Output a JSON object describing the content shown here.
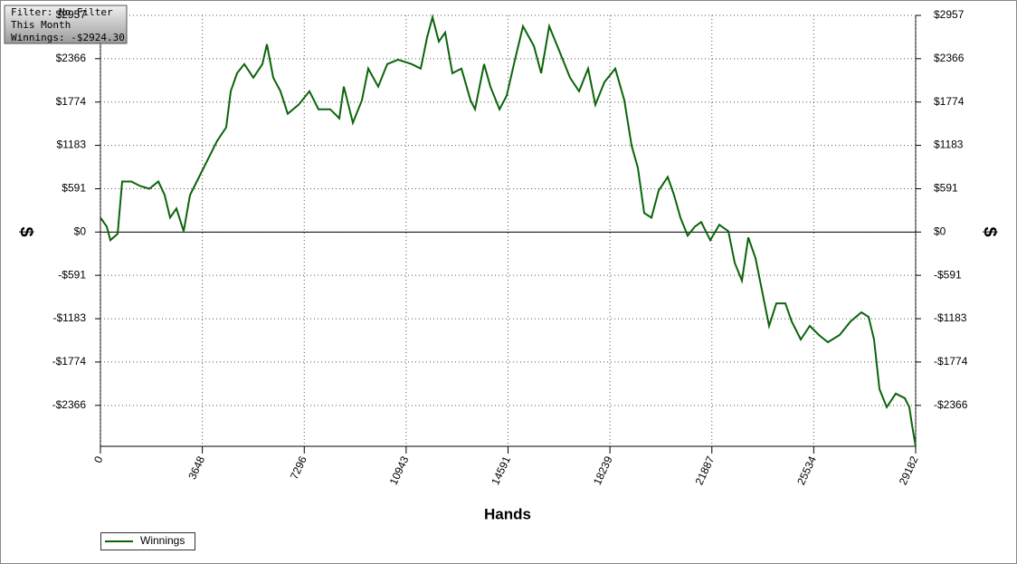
{
  "chart_data": {
    "type": "line",
    "annotations": [
      "Filter: No Filter",
      "This Month",
      "Winnings: -$2924.30"
    ],
    "x_label": "Hands",
    "y_label": "$",
    "x": [
      0,
      227,
      356,
      615,
      777,
      1101,
      1425,
      1749,
      2073,
      2300,
      2494,
      2721,
      2980,
      3207,
      3531,
      3855,
      4178,
      4502,
      4664,
      4891,
      5150,
      5474,
      5798,
      5960,
      6187,
      6446,
      6705,
      7094,
      7482,
      7806,
      8227,
      8551,
      8713,
      9037,
      9361,
      9588,
      9944,
      10268,
      10657,
      11143,
      11467,
      11694,
      11888,
      12114,
      12341,
      12600,
      12924,
      13248,
      13410,
      13734,
      13961,
      14285,
      14544,
      14803,
      15127,
      15516,
      15775,
      16065,
      16422,
      16811,
      17134,
      17458,
      17717,
      18041,
      18430,
      18754,
      19013,
      19240,
      19466,
      19725,
      19985,
      20309,
      20535,
      20762,
      21021,
      21280,
      21506,
      21830,
      22154,
      22478,
      22705,
      22964,
      23191,
      23450,
      23676,
      23935,
      24194,
      24518,
      24745,
      25069,
      25393,
      25717,
      26041,
      26462,
      26851,
      27240,
      27499,
      27693,
      27887,
      28146,
      28470,
      28794,
      28956,
      29053,
      29182
    ],
    "series": [
      {
        "name": "Winnings",
        "color": "#0a640a",
        "values": [
          197,
          74,
          -111,
          -25,
          690,
          690,
          628,
          591,
          690,
          505,
          197,
          320,
          12,
          505,
          752,
          998,
          1244,
          1429,
          1922,
          2168,
          2292,
          2107,
          2292,
          2563,
          2107,
          1922,
          1614,
          1737,
          1922,
          1676,
          1676,
          1552,
          1984,
          1491,
          1799,
          2230,
          1984,
          2292,
          2353,
          2292,
          2230,
          2661,
          2932,
          2600,
          2723,
          2168,
          2230,
          1799,
          1676,
          2292,
          1984,
          1676,
          1861,
          2292,
          2809,
          2538,
          2168,
          2809,
          2476,
          2107,
          1922,
          2230,
          1737,
          2045,
          2230,
          1799,
          1183,
          875,
          259,
          197,
          567,
          752,
          505,
          197,
          -49,
          74,
          136,
          -111,
          99,
          12,
          -419,
          -665,
          -74,
          -357,
          -788,
          -1281,
          -973,
          -973,
          -1220,
          -1466,
          -1281,
          -1404,
          -1503,
          -1404,
          -1220,
          -1096,
          -1158,
          -1466,
          -2144,
          -2390,
          -2205,
          -2267,
          -2390,
          -2637,
          -2924.3
        ]
      }
    ],
    "xlim": [
      0,
      29182
    ],
    "xticks": [
      0,
      3648,
      7296,
      10943,
      14591,
      18239,
      21887,
      25534,
      29182
    ],
    "ylim": [
      -2924.3,
      2957
    ],
    "yticks": [
      {
        "value": 2957,
        "label": "$2957"
      },
      {
        "value": 2366,
        "label": "$2366"
      },
      {
        "value": 1774,
        "label": "$1774"
      },
      {
        "value": 1183,
        "label": "$1183"
      },
      {
        "value": 591,
        "label": "$591"
      },
      {
        "value": 0,
        "label": "$0"
      },
      {
        "value": -591,
        "label": "-$591"
      },
      {
        "value": -1183,
        "label": "-$1183"
      },
      {
        "value": -1774,
        "label": "-$1774"
      },
      {
        "value": -2366,
        "label": "-$2366"
      }
    ],
    "grid": true,
    "legend": "bottom-left"
  }
}
